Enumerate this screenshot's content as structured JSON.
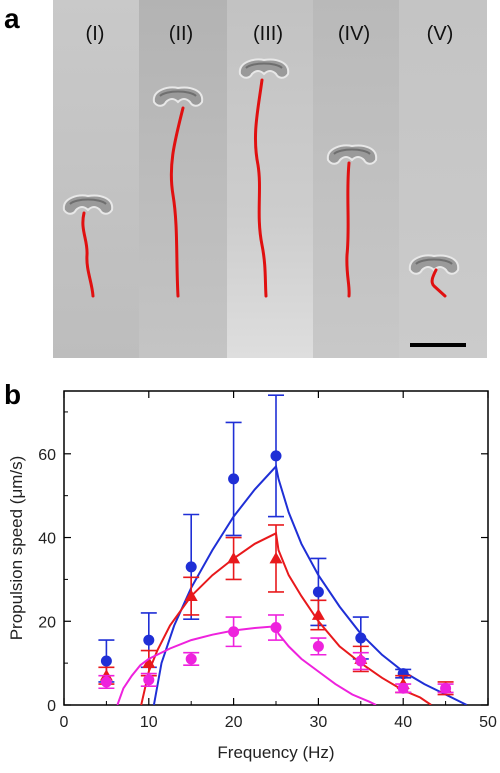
{
  "panel_a": {
    "label": "a",
    "columns": [
      {
        "label": "(I)"
      },
      {
        "label": "(II)"
      },
      {
        "label": "(III)"
      },
      {
        "label": "(IV)"
      },
      {
        "label": "(V)"
      }
    ],
    "trajectory_color": "#e01010"
  },
  "panel_b": {
    "label": "b"
  },
  "chart_data": {
    "type": "scatter",
    "xlabel": "Frequency (Hz)",
    "ylabel": "Propulsion speed (μm/s)",
    "xlim": [
      0,
      50
    ],
    "ylim": [
      0,
      75
    ],
    "xticks": [
      "0",
      "10",
      "20",
      "30",
      "40",
      "50"
    ],
    "yticks": [
      "0",
      "20",
      "40",
      "60"
    ],
    "grid": false,
    "series": [
      {
        "color": "#1f2fd6",
        "marker": "circle",
        "points": [
          {
            "x": 5,
            "y": 10.5,
            "err": 5
          },
          {
            "x": 10,
            "y": 15.5,
            "err": 6.5
          },
          {
            "x": 15,
            "y": 33,
            "err": 12.5
          },
          {
            "x": 20,
            "y": 54,
            "err": 13.5
          },
          {
            "x": 25,
            "y": 59.5,
            "err": 14.5
          },
          {
            "x": 30,
            "y": 27,
            "err": 8
          },
          {
            "x": 35,
            "y": 16,
            "err": 5
          },
          {
            "x": 40,
            "y": 7.5,
            "err": 1
          }
        ],
        "fit": [
          [
            10.6,
            0
          ],
          [
            11.5,
            10
          ],
          [
            13,
            19
          ],
          [
            15,
            28
          ],
          [
            17.5,
            37
          ],
          [
            20,
            45
          ],
          [
            22.5,
            51.5
          ],
          [
            25,
            57
          ],
          [
            25.3,
            54
          ],
          [
            26.5,
            46
          ],
          [
            28,
            38.5
          ],
          [
            30,
            31
          ],
          [
            32.5,
            23.5
          ],
          [
            35,
            17
          ],
          [
            37.5,
            12
          ],
          [
            40,
            8
          ],
          [
            42.5,
            5
          ],
          [
            45,
            2.5
          ],
          [
            47.5,
            0
          ]
        ]
      },
      {
        "color": "#e8191c",
        "marker": "triangle",
        "points": [
          {
            "x": 5,
            "y": 7,
            "err": 2
          },
          {
            "x": 10,
            "y": 10,
            "err": 3
          },
          {
            "x": 15,
            "y": 26,
            "err": 4.5
          },
          {
            "x": 20,
            "y": 35,
            "err": 5
          },
          {
            "x": 25,
            "y": 35,
            "err": 8
          },
          {
            "x": 30,
            "y": 21.5,
            "err": 3.5
          },
          {
            "x": 35,
            "y": 11,
            "err": 3
          },
          {
            "x": 40,
            "y": 5,
            "err": 2
          },
          {
            "x": 45,
            "y": 4,
            "err": 1.5
          }
        ],
        "fit": [
          [
            9.1,
            0
          ],
          [
            10,
            8
          ],
          [
            11,
            13
          ],
          [
            12.5,
            19
          ],
          [
            15,
            26
          ],
          [
            17.5,
            31
          ],
          [
            20,
            35
          ],
          [
            22.5,
            38.5
          ],
          [
            25,
            41
          ],
          [
            25.3,
            37
          ],
          [
            26.5,
            31
          ],
          [
            28,
            26
          ],
          [
            30,
            20
          ],
          [
            32.5,
            14
          ],
          [
            35,
            10
          ],
          [
            37.5,
            6.5
          ],
          [
            40,
            3.5
          ],
          [
            42,
            1.8
          ],
          [
            43.3,
            0
          ]
        ]
      },
      {
        "color": "#ee22dd",
        "marker": "circle",
        "points": [
          {
            "x": 5,
            "y": 5.5,
            "err": 1.5
          },
          {
            "x": 10,
            "y": 6,
            "err": 1.5
          },
          {
            "x": 15,
            "y": 11,
            "err": 1.5
          },
          {
            "x": 20,
            "y": 17.5,
            "err": 3.5
          },
          {
            "x": 25,
            "y": 18.5,
            "err": 3
          },
          {
            "x": 30,
            "y": 14,
            "err": 2
          },
          {
            "x": 35,
            "y": 10.5,
            "err": 2
          },
          {
            "x": 40,
            "y": 4,
            "err": 1
          },
          {
            "x": 45,
            "y": 4,
            "err": 1
          }
        ],
        "fit": [
          [
            6.3,
            0
          ],
          [
            7,
            4
          ],
          [
            8,
            7
          ],
          [
            9,
            9.5
          ],
          [
            10,
            11
          ],
          [
            12.5,
            13.5
          ],
          [
            15,
            15.5
          ],
          [
            17.5,
            16.8
          ],
          [
            20,
            17.8
          ],
          [
            22.5,
            18.4
          ],
          [
            25,
            18.8
          ],
          [
            25.3,
            17
          ],
          [
            26.5,
            14
          ],
          [
            28,
            11
          ],
          [
            30,
            8
          ],
          [
            32,
            5
          ],
          [
            34,
            2.5
          ],
          [
            36,
            0.8
          ],
          [
            36.8,
            0
          ]
        ]
      }
    ]
  }
}
